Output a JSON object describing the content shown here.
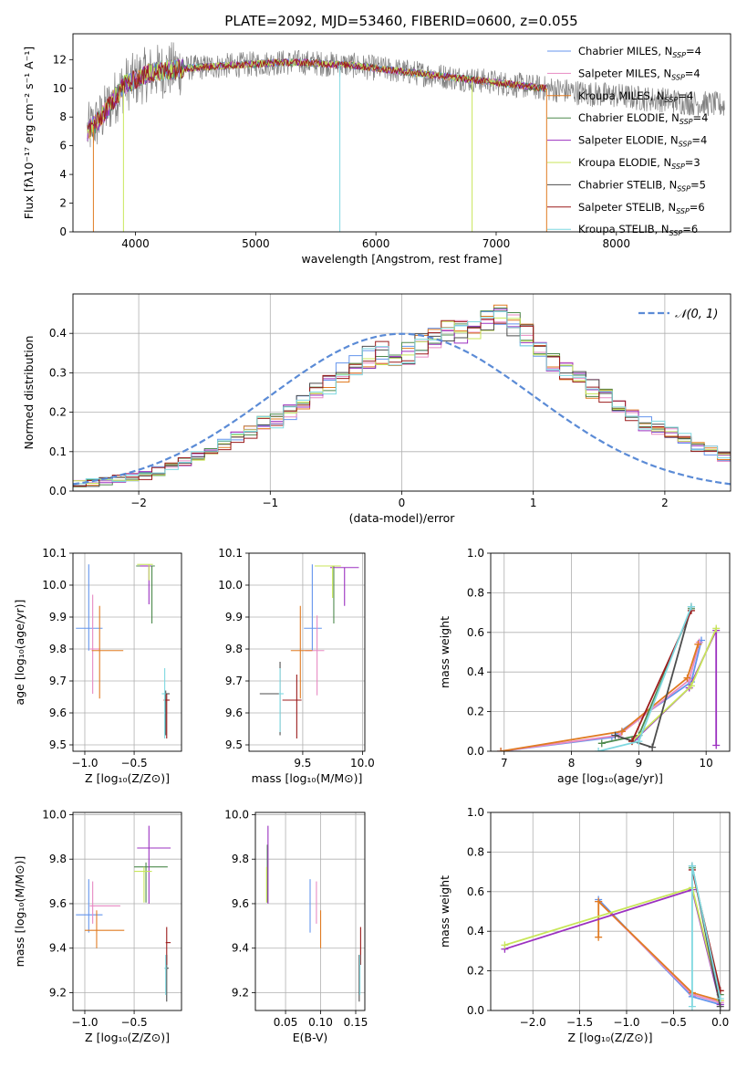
{
  "title": "PLATE=2092, MJD=53460, FIBERID=0600, z=0.055",
  "colors": [
    "#6495ed",
    "#e78ac3",
    "#e07b22",
    "#4d8a4d",
    "#9b30c0",
    "#c8e65a",
    "#4d4d4d",
    "#9b1b1b",
    "#7fd8e0"
  ],
  "legend": [
    {
      "label": "Chabrier MILES, N",
      "sub": "SSP",
      "suffix": "=4"
    },
    {
      "label": "Salpeter MILES, N",
      "sub": "SSP",
      "suffix": "=4"
    },
    {
      "label": "Kroupa MILES, N",
      "sub": "SSP",
      "suffix": "=4"
    },
    {
      "label": "Chabrier ELODIE, N",
      "sub": "SSP",
      "suffix": "=4"
    },
    {
      "label": "Salpeter ELODIE, N",
      "sub": "SSP",
      "suffix": "=4"
    },
    {
      "label": "Kroupa ELODIE, N",
      "sub": "SSP",
      "suffix": "=3"
    },
    {
      "label": "Chabrier STELIB, N",
      "sub": "SSP",
      "suffix": "=5"
    },
    {
      "label": "Salpeter STELIB, N",
      "sub": "SSP",
      "suffix": "=6"
    },
    {
      "label": "Kroupa STELIB, N",
      "sub": "SSP",
      "suffix": "=6"
    }
  ],
  "chart_data": [
    {
      "id": "spectrum",
      "type": "line",
      "xlabel": "wavelength [Angstrom, rest frame]",
      "ylabel": "Flux [fλ10⁻¹⁷ erg cm⁻² s⁻¹ A⁻¹]",
      "xlim": [
        3480,
        8950
      ],
      "ylim": [
        0,
        13.8
      ],
      "xticks": [
        4000,
        5000,
        6000,
        7000,
        8000
      ],
      "yticks": [
        0,
        2,
        4,
        6,
        8,
        10,
        12
      ],
      "grid": false,
      "data_curve": {
        "x": [
          3600,
          3700,
          3800,
          3900,
          4000,
          4100,
          4200,
          4400,
          4600,
          4800,
          5000,
          5200,
          5400,
          5600,
          5800,
          6000,
          6200,
          6400,
          6600,
          6800,
          7000,
          7200,
          7400
        ],
        "y": [
          7.0,
          7.8,
          9.0,
          10.2,
          10.6,
          11.0,
          11.2,
          11.4,
          11.5,
          11.6,
          11.7,
          11.8,
          11.8,
          11.7,
          11.6,
          11.4,
          11.2,
          11.0,
          10.8,
          10.6,
          10.4,
          10.2,
          10.0
        ]
      },
      "data_noise": 0.9,
      "extended_data": {
        "x": [
          7400,
          7600,
          7800,
          8000,
          8200,
          8400,
          8600,
          8800,
          8900
        ],
        "y": [
          10.0,
          9.8,
          9.6,
          9.5,
          9.3,
          9.2,
          9.0,
          8.9,
          8.8
        ]
      },
      "dips": [
        {
          "x": 3650,
          "y": 0
        },
        {
          "x": 3900,
          "y": 0
        },
        {
          "x": 5700,
          "y": 0
        },
        {
          "x": 6800,
          "y": 0
        },
        {
          "x": 7420,
          "y": 0
        }
      ]
    },
    {
      "id": "residuals",
      "type": "step",
      "xlabel": "(data-model)/error",
      "ylabel": "Normed distribution",
      "xlim": [
        -2.5,
        2.5
      ],
      "ylim": [
        0,
        0.5
      ],
      "xticks": [
        -2,
        -1,
        0,
        1,
        2
      ],
      "yticks": [
        0.0,
        0.1,
        0.2,
        0.3,
        0.4
      ],
      "grid": true,
      "legend": {
        "label": "𝒩(0, 1)",
        "position": "top-right"
      },
      "bin_width": 0.1,
      "bin_start": -2.5,
      "base": [
        0.02,
        0.022,
        0.025,
        0.03,
        0.035,
        0.04,
        0.05,
        0.06,
        0.075,
        0.09,
        0.1,
        0.12,
        0.14,
        0.15,
        0.17,
        0.18,
        0.2,
        0.22,
        0.25,
        0.27,
        0.3,
        0.32,
        0.34,
        0.35,
        0.33,
        0.35,
        0.37,
        0.39,
        0.41,
        0.4,
        0.41,
        0.43,
        0.44,
        0.42,
        0.4,
        0.36,
        0.33,
        0.31,
        0.28,
        0.26,
        0.24,
        0.21,
        0.19,
        0.17,
        0.16,
        0.15,
        0.13,
        0.11,
        0.1,
        0.085,
        0.07,
        0.06,
        0.05,
        0.04,
        0.035,
        0.03,
        0.027,
        0.025,
        0.03,
        0.03
      ]
    },
    {
      "id": "age_vs_Z",
      "type": "errorbar",
      "xlabel": "Z [log₁₀(Z/Z⊙)]",
      "ylabel": "age  [log₁₀(age/yr)]",
      "xlim": [
        -1.12,
        -0.02
      ],
      "ylim": [
        9.48,
        10.1
      ],
      "xticks": [
        -1.0,
        -0.5
      ],
      "yticks": [
        9.5,
        9.6,
        9.7,
        9.8,
        9.9,
        10.0,
        10.1
      ],
      "points": [
        {
          "x": -0.96,
          "y": 9.865,
          "xerr": [
            0.13,
            0.14
          ],
          "yerr": [
            0.07,
            0.2
          ]
        },
        {
          "x": -0.92,
          "y": 9.8,
          "xerr": [
            0.03,
            0.07
          ],
          "yerr": [
            0.14,
            0.17
          ]
        },
        {
          "x": -0.85,
          "y": 9.795,
          "xerr": [
            0.08,
            0.24
          ],
          "yerr": [
            0.15,
            0.14
          ]
        },
        {
          "x": -0.32,
          "y": 10.06,
          "xerr": [
            0.16,
            0.03
          ],
          "yerr": [
            0.18,
            0.0
          ]
        },
        {
          "x": -0.35,
          "y": 10.06,
          "xerr": [
            0.09,
            0.02
          ],
          "yerr": [
            0.12,
            0.0
          ]
        },
        {
          "x": -0.35,
          "y": 10.065,
          "xerr": [
            0.12,
            0.04
          ],
          "yerr": [
            0.05,
            0.0
          ]
        },
        {
          "x": -0.18,
          "y": 9.66,
          "xerr": [
            0.02,
            0.04
          ],
          "yerr": [
            0.13,
            0.01
          ]
        },
        {
          "x": -0.17,
          "y": 9.64,
          "xerr": [
            0.03,
            0.03
          ],
          "yerr": [
            0.12,
            0.02
          ]
        },
        {
          "x": -0.19,
          "y": 9.66,
          "xerr": [
            0.03,
            0.01
          ],
          "yerr": [
            0.14,
            0.08
          ]
        }
      ]
    },
    {
      "id": "age_vs_mass",
      "type": "errorbar",
      "xlabel": "mass [log₁₀(M/M⊙)]",
      "ylabel": "",
      "xlim": [
        9.05,
        10.02
      ],
      "ylim": [
        9.48,
        10.1
      ],
      "xticks": [
        9.5,
        10.0
      ],
      "yticks": [
        9.5,
        9.6,
        9.7,
        9.8,
        9.9,
        10.0,
        10.1
      ],
      "points": [
        {
          "x": 9.58,
          "y": 9.865,
          "xerr": [
            0.07,
            0.08
          ],
          "yerr": [
            0.07,
            0.2
          ]
        },
        {
          "x": 9.62,
          "y": 9.795,
          "xerr": [
            0.1,
            0.06
          ],
          "yerr": [
            0.14,
            0.11
          ]
        },
        {
          "x": 9.48,
          "y": 9.795,
          "xerr": [
            0.08,
            0.1
          ],
          "yerr": [
            0.15,
            0.14
          ]
        },
        {
          "x": 9.76,
          "y": 10.06,
          "xerr": [
            0.12,
            0.03
          ],
          "yerr": [
            0.18,
            0.0
          ]
        },
        {
          "x": 9.85,
          "y": 10.055,
          "xerr": [
            0.12,
            0.12
          ],
          "yerr": [
            0.12,
            0.0
          ]
        },
        {
          "x": 9.75,
          "y": 10.06,
          "xerr": [
            0.15,
            0.07
          ],
          "yerr": [
            0.1,
            0.0
          ]
        },
        {
          "x": 9.31,
          "y": 9.66,
          "xerr": [
            0.17,
            0.0
          ],
          "yerr": [
            0.13,
            0.1
          ]
        },
        {
          "x": 9.45,
          "y": 9.64,
          "xerr": [
            0.12,
            0.04
          ],
          "yerr": [
            0.12,
            0.08
          ]
        },
        {
          "x": 9.31,
          "y": 9.66,
          "xerr": [
            0.01,
            0.03
          ],
          "yerr": [
            0.12,
            0.08
          ]
        }
      ]
    },
    {
      "id": "mass_weight_vs_age",
      "type": "line",
      "xlabel": "age  [log₁₀(age/yr)]",
      "ylabel": "mass weight",
      "xlim": [
        6.8,
        10.35
      ],
      "ylim": [
        0,
        1.0
      ],
      "xticks": [
        7,
        8,
        9,
        10
      ],
      "yticks": [
        0.0,
        0.2,
        0.4,
        0.6,
        0.8,
        1.0
      ],
      "series": [
        {
          "x": [
            6.95,
            8.6,
            9.78,
            9.93
          ],
          "y": [
            0.0,
            0.07,
            0.35,
            0.56
          ]
        },
        {
          "x": [
            6.95,
            8.7,
            9.75,
            9.9
          ],
          "y": [
            0.0,
            0.08,
            0.36,
            0.55
          ]
        },
        {
          "x": [
            6.95,
            8.75,
            9.72,
            9.88
          ],
          "y": [
            0.0,
            0.1,
            0.37,
            0.54
          ]
        },
        {
          "x": [
            8.45,
            9.0,
            9.78
          ],
          "y": [
            0.04,
            0.08,
            0.72
          ]
        },
        {
          "x": [
            8.95,
            9.75,
            10.15,
            10.15
          ],
          "y": [
            0.06,
            0.32,
            0.61,
            0.03
          ]
        },
        {
          "x": [
            8.9,
            9.78,
            10.15
          ],
          "y": [
            0.05,
            0.33,
            0.62
          ]
        },
        {
          "x": [
            8.65,
            9.2,
            9.78
          ],
          "y": [
            0.08,
            0.02,
            0.73
          ]
        },
        {
          "x": [
            8.9,
            9.78
          ],
          "y": [
            0.05,
            0.71
          ]
        },
        {
          "x": [
            8.4,
            9.0,
            9.78
          ],
          "y": [
            0.0,
            0.05,
            0.73
          ]
        }
      ]
    },
    {
      "id": "mass_vs_Z",
      "type": "errorbar",
      "xlabel": "Z [log₁₀(Z/Z⊙)]",
      "ylabel": "mass [log₁₀(M/M⊙)]",
      "xlim": [
        -1.12,
        -0.02
      ],
      "ylim": [
        9.12,
        10.01
      ],
      "xticks": [
        -1.0,
        -0.5
      ],
      "yticks": [
        9.2,
        9.4,
        9.6,
        9.8,
        10.0
      ],
      "points": [
        {
          "x": -0.96,
          "y": 9.55,
          "xerr": [
            0.13,
            0.14
          ],
          "yerr": [
            0.08,
            0.16
          ]
        },
        {
          "x": -0.92,
          "y": 9.59,
          "xerr": [
            0.03,
            0.28
          ],
          "yerr": [
            0.08,
            0.11
          ]
        },
        {
          "x": -0.88,
          "y": 9.48,
          "xerr": [
            0.12,
            0.28
          ],
          "yerr": [
            0.08,
            0.09
          ]
        },
        {
          "x": -0.38,
          "y": 9.765,
          "xerr": [
            0.12,
            0.22
          ],
          "yerr": [
            0.16,
            0.02
          ]
        },
        {
          "x": -0.35,
          "y": 9.85,
          "xerr": [
            0.12,
            0.22
          ],
          "yerr": [
            0.25,
            0.1
          ]
        },
        {
          "x": -0.4,
          "y": 9.745,
          "xerr": [
            0.1,
            0.08
          ],
          "yerr": [
            0.14,
            0.02
          ]
        },
        {
          "x": -0.17,
          "y": 9.31,
          "xerr": [
            0.02,
            0.02
          ],
          "yerr": [
            0.15,
            0.06
          ]
        },
        {
          "x": -0.17,
          "y": 9.425,
          "xerr": [
            0.01,
            0.04
          ],
          "yerr": [
            0.1,
            0.07
          ]
        },
        {
          "x": -0.18,
          "y": 9.31,
          "xerr": [
            0.01,
            0.01
          ],
          "yerr": [
            0.12,
            0.06
          ]
        }
      ]
    },
    {
      "id": "mass_vs_EBV",
      "type": "errorbar",
      "xlabel": "E(B-V)",
      "ylabel": "",
      "xlim": [
        0.007,
        0.163
      ],
      "ylim": [
        9.12,
        10.01
      ],
      "xticks": [
        0.05,
        0.1,
        0.15
      ],
      "yticks": [
        9.2,
        9.4,
        9.6,
        9.8,
        10.0
      ],
      "points": [
        {
          "x": 0.085,
          "y": 9.55,
          "xerr": [
            0,
            0
          ],
          "yerr": [
            0.08,
            0.16
          ]
        },
        {
          "x": 0.094,
          "y": 9.59,
          "xerr": [
            0,
            0
          ],
          "yerr": [
            0.08,
            0.11
          ]
        },
        {
          "x": 0.1,
          "y": 9.48,
          "xerr": [
            0,
            0
          ],
          "yerr": [
            0.08,
            0.09
          ]
        },
        {
          "x": 0.024,
          "y": 9.765,
          "xerr": [
            0,
            0
          ],
          "yerr": [
            0.16,
            0.1
          ]
        },
        {
          "x": 0.025,
          "y": 9.85,
          "xerr": [
            0,
            0
          ],
          "yerr": [
            0.25,
            0.1
          ]
        },
        {
          "x": 0.023,
          "y": 9.745,
          "xerr": [
            0,
            0
          ],
          "yerr": [
            0.14,
            0.02
          ]
        },
        {
          "x": 0.155,
          "y": 9.31,
          "xerr": [
            0,
            0
          ],
          "yerr": [
            0.15,
            0.06
          ]
        },
        {
          "x": 0.157,
          "y": 9.425,
          "xerr": [
            0,
            0
          ],
          "yerr": [
            0.1,
            0.07
          ]
        },
        {
          "x": 0.156,
          "y": 9.31,
          "xerr": [
            0,
            0
          ],
          "yerr": [
            0.12,
            0.06
          ]
        }
      ]
    },
    {
      "id": "mass_weight_vs_Z",
      "type": "line",
      "xlabel": "Z [log₁₀(Z/Z⊙)]",
      "ylabel": "mass weight",
      "xlim": [
        -2.45,
        0.1
      ],
      "ylim": [
        0,
        1.0
      ],
      "xticks": [
        -2.0,
        -1.5,
        -1.0,
        -0.5,
        0.0
      ],
      "yticks": [
        0.0,
        0.2,
        0.4,
        0.6,
        0.8,
        1.0
      ],
      "series": [
        {
          "x": [
            -1.3,
            -0.3,
            0.0
          ],
          "y": [
            0.56,
            0.07,
            0.03
          ]
        },
        {
          "x": [
            -1.3,
            -0.3,
            0.0
          ],
          "y": [
            0.55,
            0.08,
            0.04
          ]
        },
        {
          "x": [
            -1.3,
            -1.3,
            -0.3,
            0.0
          ],
          "y": [
            0.37,
            0.55,
            0.09,
            0.05
          ]
        },
        {
          "x": [
            -0.3,
            0.0
          ],
          "y": [
            0.72,
            0.08
          ]
        },
        {
          "x": [
            -2.3,
            -0.3,
            0.0
          ],
          "y": [
            0.31,
            0.61,
            0.03
          ]
        },
        {
          "x": [
            -2.3,
            -0.3,
            0.0
          ],
          "y": [
            0.33,
            0.62,
            0.05
          ]
        },
        {
          "x": [
            -0.3,
            0.0
          ],
          "y": [
            0.73,
            0.02
          ]
        },
        {
          "x": [
            -0.3,
            0.0
          ],
          "y": [
            0.71,
            0.1
          ]
        },
        {
          "x": [
            -0.3,
            -0.3,
            0.0
          ],
          "y": [
            0.02,
            0.73,
            0.06
          ]
        }
      ]
    }
  ]
}
